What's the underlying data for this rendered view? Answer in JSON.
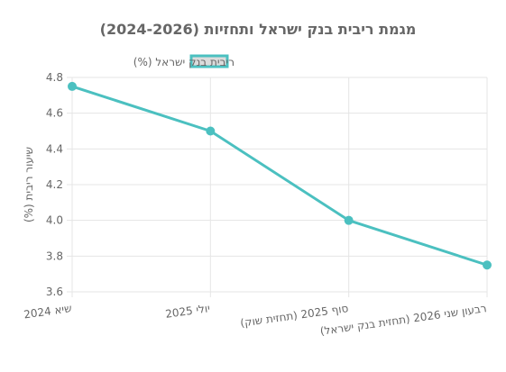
{
  "chart_data": {
    "type": "line",
    "title": "מגמת ריבית בנק ישראל ותחזיות (2024-2026)",
    "categories": [
      "שיא 2024",
      "יולי 2025",
      "סוף 2025 (תחזית שוק)",
      "רבעון שני 2026 (תחזית בנק ישראל)"
    ],
    "series": [
      {
        "name": "ריבית בנק ישראל (%)",
        "values": [
          4.75,
          4.5,
          4.0,
          3.75
        ],
        "color": "#4bc0c0"
      }
    ],
    "xlabel": "",
    "ylabel": "שיעור ריבית (%)",
    "ylim": [
      3.6,
      4.8
    ],
    "yticks": [
      "4.8",
      "4.6",
      "4.4",
      "4.2",
      "4.0",
      "3.8",
      "3.6"
    ],
    "grid": true,
    "legend": "top"
  }
}
